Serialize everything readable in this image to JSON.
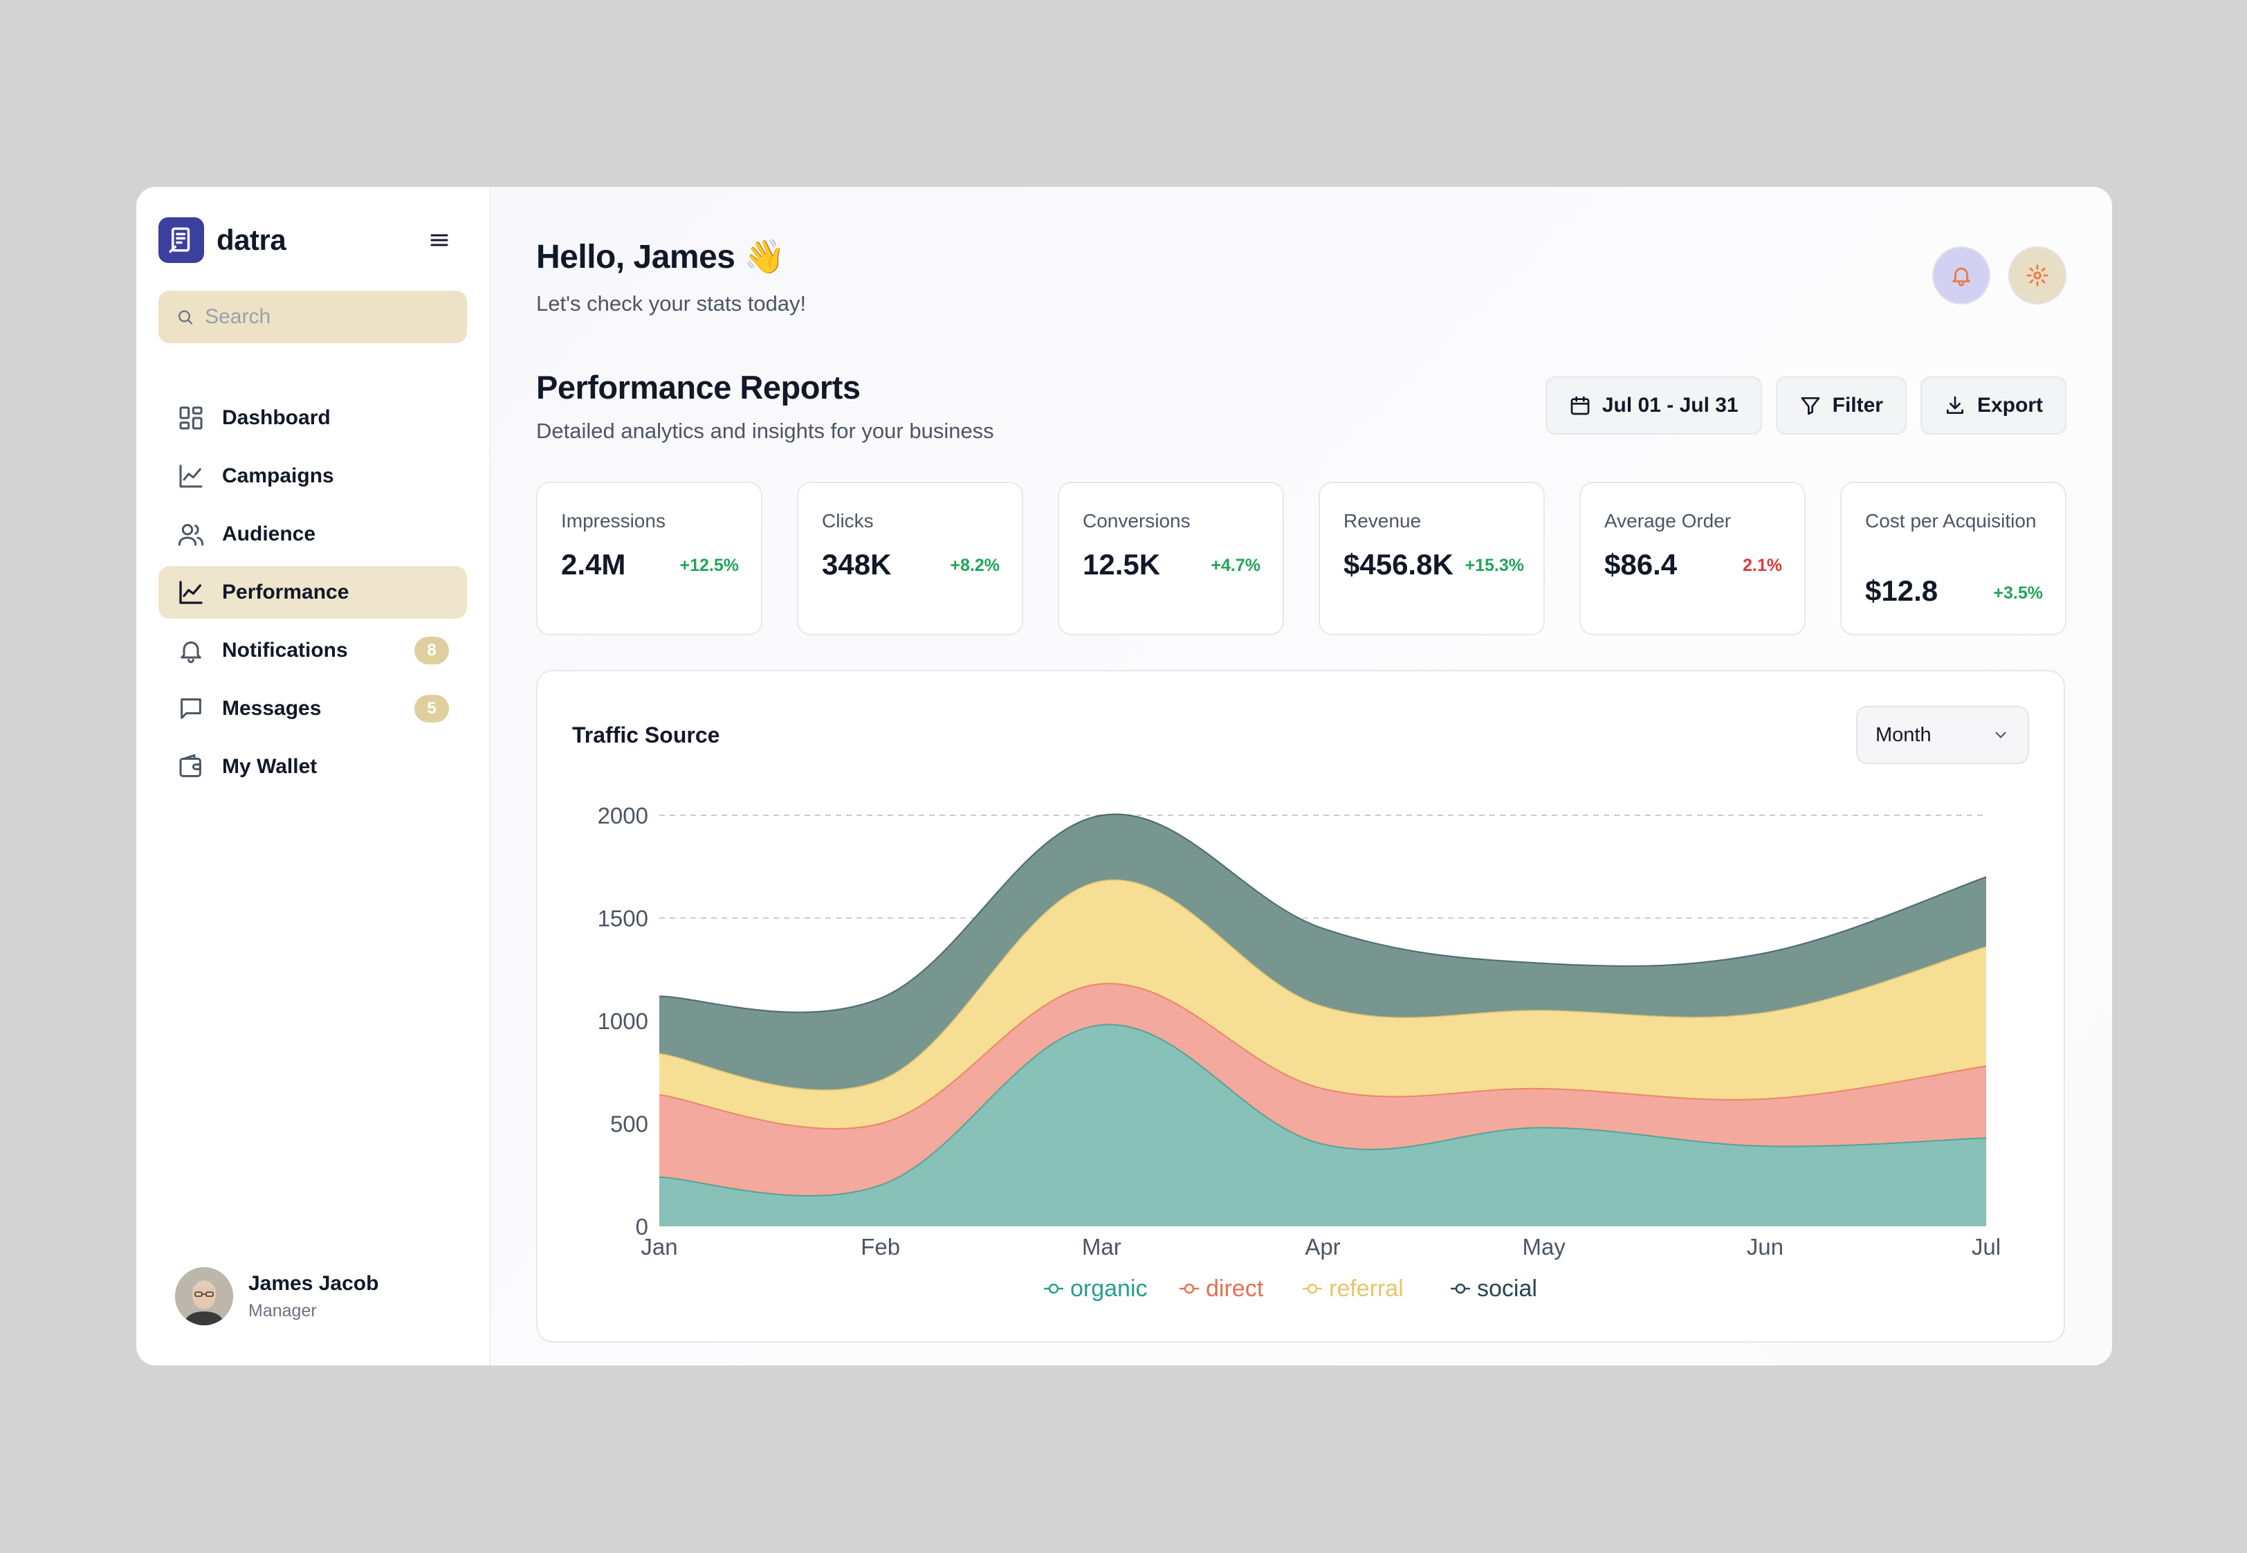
{
  "brand": {
    "name": "datra"
  },
  "search": {
    "placeholder": "Search"
  },
  "sidebar": {
    "items": [
      {
        "label": "Dashboard",
        "icon": "dashboard-icon"
      },
      {
        "label": "Campaigns",
        "icon": "chart-line-icon"
      },
      {
        "label": "Audience",
        "icon": "users-icon"
      },
      {
        "label": "Performance",
        "icon": "chart-line-icon",
        "active": true
      },
      {
        "label": "Notifications",
        "icon": "bell-icon",
        "badge": "8"
      },
      {
        "label": "Messages",
        "icon": "message-icon",
        "badge": "5"
      },
      {
        "label": "My Wallet",
        "icon": "wallet-icon"
      }
    ]
  },
  "profile": {
    "name": "James Jacob",
    "role": "Manager"
  },
  "header": {
    "greeting": "Hello, James 👋",
    "subtitle": "Let's check your stats today!"
  },
  "reports": {
    "title": "Performance Reports",
    "subtitle": "Detailed analytics and insights for your business",
    "date_range": "Jul 01 - Jul 31",
    "filter_label": "Filter",
    "export_label": "Export"
  },
  "kpis": [
    {
      "label": "Impressions",
      "value": "2.4M",
      "change": "+12.5%",
      "trend": "up"
    },
    {
      "label": "Clicks",
      "value": "348K",
      "change": "+8.2%",
      "trend": "up"
    },
    {
      "label": "Conversions",
      "value": "12.5K",
      "change": "+4.7%",
      "trend": "up"
    },
    {
      "label": "Revenue",
      "value": "$456.8K",
      "change": "+15.3%",
      "trend": "up"
    },
    {
      "label": "Average Order",
      "value": "$86.4",
      "change": "2.1%",
      "trend": "down"
    },
    {
      "label": "Cost per Acquisition",
      "value": "$12.8",
      "change": "+3.5%",
      "trend": "up"
    }
  ],
  "chart_card": {
    "title": "Traffic Source",
    "period": "Month"
  },
  "colors": {
    "organic": "#87c1b7",
    "direct": "#f3a99d",
    "referral": "#f6de94",
    "social": "#76968f",
    "organic_text": "#2a9d8f",
    "direct_text": "#e76f51",
    "referral_text": "#e9c46a",
    "social_text": "#264653"
  },
  "chart_data": {
    "type": "area",
    "stacked": true,
    "categories": [
      "Jan",
      "Feb",
      "Mar",
      "Apr",
      "May",
      "Jun",
      "Jul"
    ],
    "yticks": [
      0,
      500,
      1000,
      1500,
      2000
    ],
    "ylim": [
      0,
      2000
    ],
    "grid": true,
    "legend": "bottom-center",
    "series": [
      {
        "name": "organic",
        "values": [
          240,
          200,
          980,
          400,
          480,
          390,
          430
        ]
      },
      {
        "name": "direct",
        "values": [
          400,
          300,
          200,
          270,
          190,
          230,
          350
        ]
      },
      {
        "name": "referral",
        "values": [
          200,
          210,
          500,
          400,
          380,
          420,
          580
        ]
      },
      {
        "name": "social",
        "values": [
          280,
          400,
          320,
          380,
          230,
          290,
          340
        ]
      }
    ]
  }
}
